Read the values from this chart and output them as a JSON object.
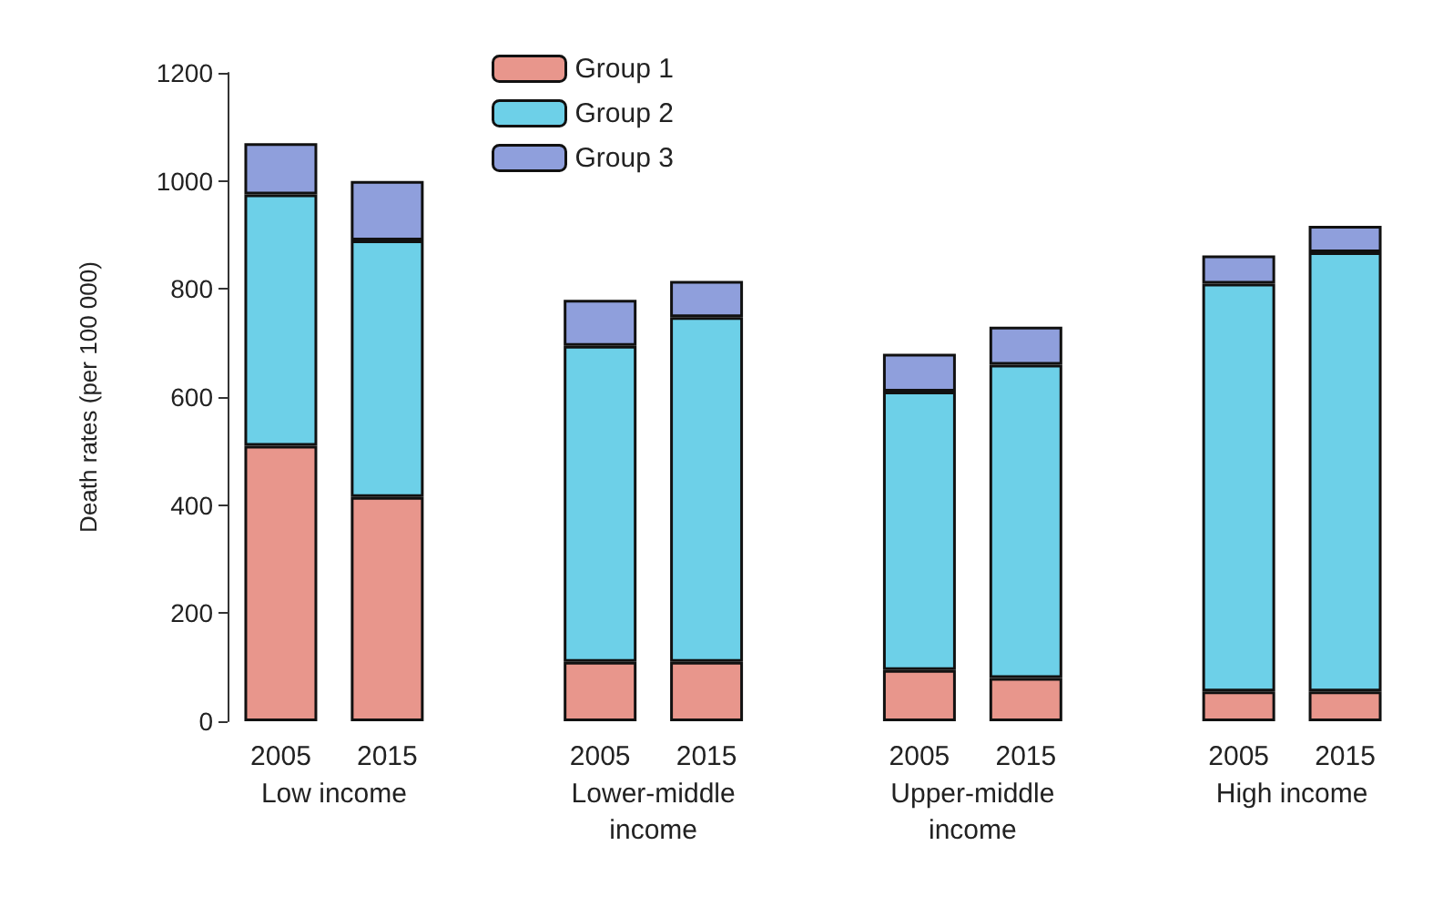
{
  "chart_data": {
    "type": "bar",
    "stacked": true,
    "ylabel": "Death rates (per 100 000)",
    "categories": [
      "2005",
      "2015",
      null,
      "2005",
      "2015",
      null,
      "2005",
      "2015",
      null,
      "2005",
      "2015"
    ],
    "series": [
      {
        "name": "Group 1",
        "color": "#e8968c",
        "values": [
          510,
          415,
          null,
          110,
          110,
          null,
          95,
          80,
          null,
          55,
          55
        ]
      },
      {
        "name": "Group 2",
        "color": "#6dd0e8",
        "values": [
          465,
          475,
          null,
          585,
          638,
          null,
          515,
          580,
          null,
          755,
          813
        ]
      },
      {
        "name": "Group 3",
        "color": "#8f9fdc",
        "values": [
          95,
          110,
          null,
          85,
          67,
          null,
          70,
          70,
          null,
          52,
          49
        ]
      }
    ],
    "annotations": [
      "Low income",
      "Lower-middle\nincome",
      "Upper-middle\nincome",
      "High income"
    ],
    "ylim": [
      0,
      1200
    ],
    "yticks": [
      0,
      200,
      400,
      600,
      800,
      1000,
      1200
    ],
    "grid": false,
    "legend": "top"
  }
}
